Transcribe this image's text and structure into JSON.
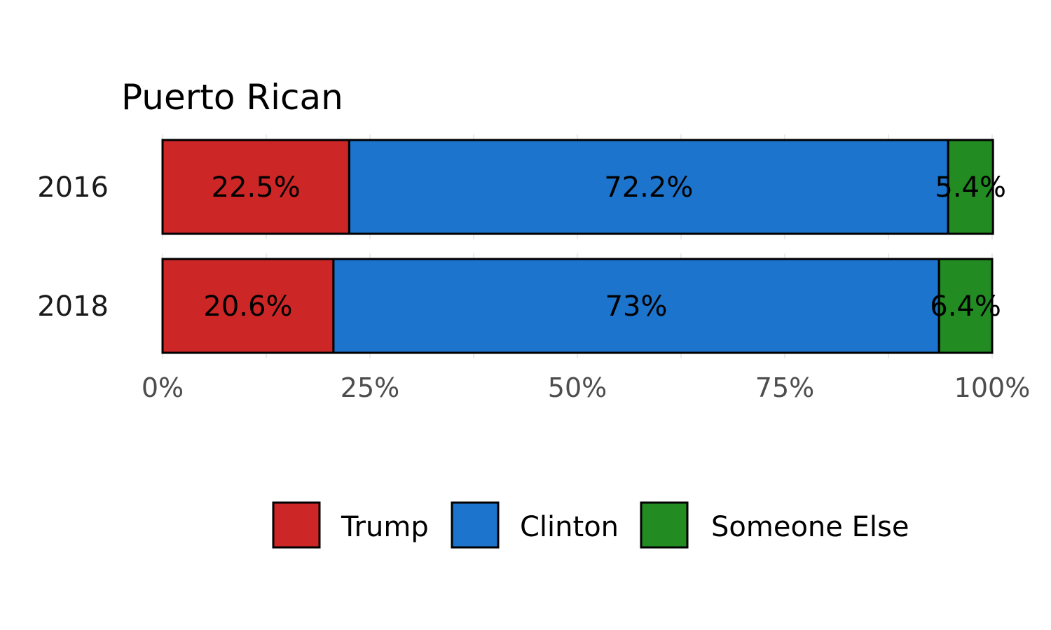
{
  "chart_data": {
    "type": "bar",
    "orientation": "horizontal",
    "stacked": "percent",
    "title": "Puerto Rican",
    "categories": [
      "2016",
      "2018"
    ],
    "series": [
      {
        "name": "Trump",
        "color": "#cd2626",
        "values": [
          22.5,
          20.6
        ],
        "labels": [
          "22.5%",
          "20.6%"
        ]
      },
      {
        "name": "Clinton",
        "color": "#1c74cc",
        "values": [
          72.2,
          73
        ],
        "labels": [
          "72.2%",
          "73%"
        ]
      },
      {
        "name": "Someone Else",
        "color": "#228b22",
        "values": [
          5.4,
          6.4
        ],
        "labels": [
          "5.4%",
          "6.4%"
        ]
      }
    ],
    "xlim": [
      0,
      100
    ],
    "xticks": [
      "0%",
      "25%",
      "50%",
      "75%",
      "100%"
    ],
    "xtick_values": [
      0,
      25,
      50,
      75,
      100
    ],
    "grid": true,
    "legend_position": "bottom"
  }
}
